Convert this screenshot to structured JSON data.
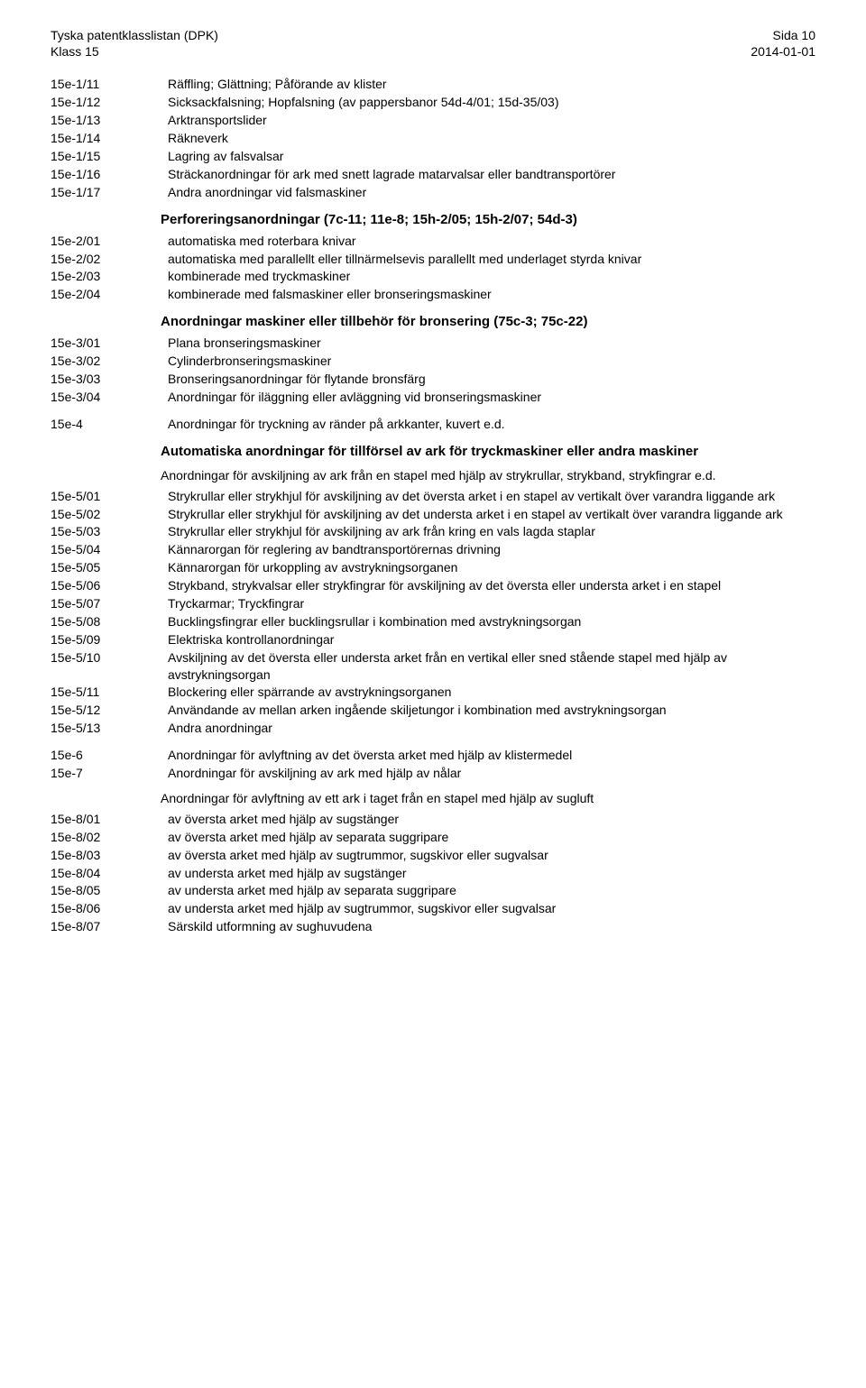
{
  "header": {
    "left_line1": "Tyska patentklasslistan (DPK)",
    "left_line2": "Klass 15",
    "right_line1": "Sida 10",
    "right_line2": "2014-01-01"
  },
  "blocks": [
    {
      "type": "entries",
      "items": [
        {
          "code": "15e-1/11",
          "desc": "Räffling; Glättning; Påförande av klister"
        },
        {
          "code": "15e-1/12",
          "desc": "Sicksackfalsning; Hopfalsning (av pappersbanor 54d-4/01; 15d-35/03)"
        },
        {
          "code": "15e-1/13",
          "desc": "Arktransportslider"
        },
        {
          "code": "15e-1/14",
          "desc": "Räkneverk"
        },
        {
          "code": "15e-1/15",
          "desc": "Lagring av falsvalsar"
        },
        {
          "code": "15e-1/16",
          "desc": "Sträckanordningar för ark med snett lagrade matarvalsar eller bandtransportörer"
        },
        {
          "code": "15e-1/17",
          "desc": "Andra anordningar vid falsmaskiner"
        }
      ]
    },
    {
      "type": "section",
      "text": "Perforeringsanordningar (7c-11; 11e-8; 15h-2/05; 15h-2/07; 54d-3)"
    },
    {
      "type": "entries",
      "items": [
        {
          "code": "15e-2/01",
          "desc": "automatiska med roterbara knivar"
        },
        {
          "code": "15e-2/02",
          "desc": "automatiska med parallellt eller tillnärmelsevis parallellt med underlaget styrda knivar"
        },
        {
          "code": "15e-2/03",
          "desc": "kombinerade med tryckmaskiner"
        },
        {
          "code": "15e-2/04",
          "desc": "kombinerade med falsmaskiner eller bronseringsmaskiner"
        }
      ]
    },
    {
      "type": "section",
      "text": "Anordningar maskiner eller tillbehör för bronsering (75c-3; 75c-22)"
    },
    {
      "type": "entries",
      "items": [
        {
          "code": "15e-3/01",
          "desc": "Plana bronseringsmaskiner"
        },
        {
          "code": "15e-3/02",
          "desc": "Cylinderbronseringsmaskiner"
        },
        {
          "code": "15e-3/03",
          "desc": "Bronseringsanordningar för flytande bronsfärg"
        },
        {
          "code": "15e-3/04",
          "desc": "Anordningar för iläggning eller avläggning vid bronseringsmaskiner"
        }
      ]
    },
    {
      "type": "gap"
    },
    {
      "type": "entries",
      "items": [
        {
          "code": "15e-4",
          "desc": "Anordningar för tryckning av ränder på arkkanter, kuvert e.d."
        }
      ]
    },
    {
      "type": "section",
      "text": "Automatiska anordningar för tillförsel av ark för tryckmaskiner eller andra maskiner"
    },
    {
      "type": "subheading",
      "text": "Anordningar för avskiljning av ark från en stapel med hjälp av strykrullar, strykband, strykfingrar e.d."
    },
    {
      "type": "entries",
      "items": [
        {
          "code": "15e-5/01",
          "desc": "Strykrullar eller strykhjul för avskiljning av det översta arket i en stapel av vertikalt över varandra liggande ark"
        },
        {
          "code": "15e-5/02",
          "desc": "Strykrullar eller strykhjul för avskiljning av det understa arket i en stapel av vertikalt över varandra liggande ark"
        },
        {
          "code": "15e-5/03",
          "desc": "Strykrullar eller strykhjul för avskiljning av ark från kring en vals lagda staplar"
        },
        {
          "code": "15e-5/04",
          "desc": "Kännarorgan för reglering av bandtransportörernas drivning"
        },
        {
          "code": "15e-5/05",
          "desc": "Kännarorgan för urkoppling av avstrykningsorganen"
        },
        {
          "code": "15e-5/06",
          "desc": "Strykband, strykvalsar eller strykfingrar för avskiljning av det översta eller understa arket i en stapel"
        },
        {
          "code": "15e-5/07",
          "desc": "Tryckarmar; Tryckfingrar"
        },
        {
          "code": "15e-5/08",
          "desc": "Bucklingsfingrar eller bucklingsrullar i kombination med avstrykningsorgan"
        },
        {
          "code": "15e-5/09",
          "desc": "Elektriska kontrollanordningar"
        },
        {
          "code": "15e-5/10",
          "desc": "Avskiljning av det översta eller understa arket från en vertikal eller sned stående stapel med hjälp av avstrykningsorgan"
        },
        {
          "code": "15e-5/11",
          "desc": "Blockering eller spärrande av avstrykningsorganen"
        },
        {
          "code": "15e-5/12",
          "desc": "Användande av mellan arken ingående skiljetungor i kombination med avstrykningsorgan"
        },
        {
          "code": "15e-5/13",
          "desc": "Andra anordningar"
        }
      ]
    },
    {
      "type": "gap"
    },
    {
      "type": "entries",
      "items": [
        {
          "code": "15e-6",
          "desc": "Anordningar för avlyftning av det översta arket med hjälp av klistermedel"
        },
        {
          "code": "15e-7",
          "desc": "Anordningar för avskiljning av ark med hjälp av nålar"
        }
      ]
    },
    {
      "type": "subheading",
      "text": "Anordningar för avlyftning av ett ark i taget från en stapel med hjälp av sugluft"
    },
    {
      "type": "entries",
      "items": [
        {
          "code": "15e-8/01",
          "desc": "av översta arket med hjälp av sugstänger"
        },
        {
          "code": "15e-8/02",
          "desc": "av översta arket med hjälp av separata suggripare"
        },
        {
          "code": "15e-8/03",
          "desc": "av översta arket med hjälp av sugtrummor, sugskivor eller sugvalsar"
        },
        {
          "code": "15e-8/04",
          "desc": "av understa arket med hjälp av sugstänger"
        },
        {
          "code": "15e-8/05",
          "desc": "av understa arket med hjälp av separata suggripare"
        },
        {
          "code": "15e-8/06",
          "desc": "av understa arket med hjälp av sugtrummor, sugskivor eller sugvalsar"
        },
        {
          "code": "15e-8/07",
          "desc": "Särskild utformning av sughuvudena"
        }
      ]
    }
  ]
}
